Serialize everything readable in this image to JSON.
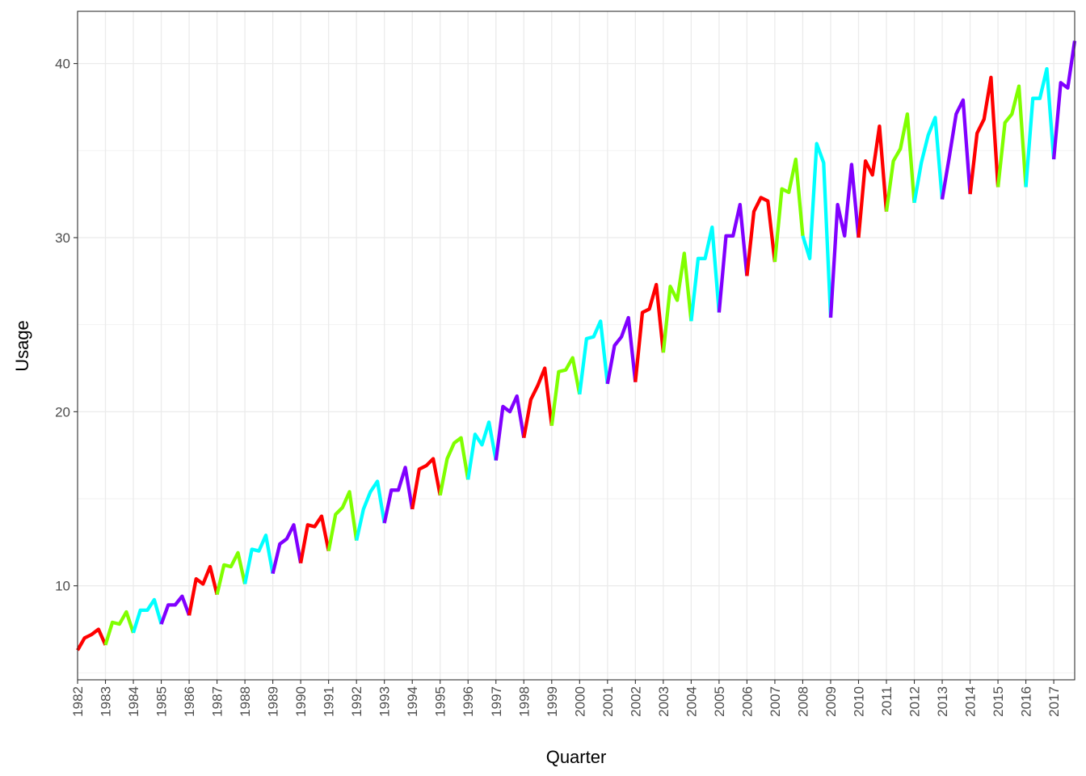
{
  "chart_data": {
    "type": "line",
    "title": "",
    "xlabel": "Quarter",
    "ylabel": "Usage",
    "xlim": [
      1982.0,
      2017.75
    ],
    "ylim": [
      4.6,
      43.0
    ],
    "yticks": [
      10,
      20,
      30,
      40
    ],
    "xticks": [
      "1982",
      "1983",
      "1984",
      "1985",
      "1986",
      "1987",
      "1988",
      "1989",
      "1990",
      "1991",
      "1992",
      "1993",
      "1994",
      "1995",
      "1996",
      "1997",
      "1998",
      "1999",
      "2000",
      "2001",
      "2002",
      "2003",
      "2004",
      "2005",
      "2006",
      "2007",
      "2008",
      "2009",
      "2010",
      "2011",
      "2012",
      "2013",
      "2014",
      "2015",
      "2016",
      "2017"
    ],
    "grid": true,
    "legend": "none",
    "palette": [
      "#ff0000",
      "#80ff00",
      "#00ffff",
      "#8000ff"
    ],
    "x_quarters_start": "1982 Q1",
    "series": [
      {
        "values": [
          6.3,
          7.0,
          7.2,
          7.5,
          6.6,
          7.9,
          7.8,
          8.5,
          7.3,
          8.6,
          8.6,
          9.2,
          7.8,
          8.9,
          8.9,
          9.4
        ]
      },
      {
        "values": [
          8.3,
          10.4,
          10.1,
          11.1,
          9.5,
          11.2,
          11.1,
          11.9,
          10.1,
          12.1,
          12.0,
          12.9,
          10.7,
          12.4,
          12.7,
          13.5
        ]
      },
      {
        "values": [
          11.3,
          13.5,
          13.4,
          14.0,
          12.0,
          14.1,
          14.5,
          15.4,
          12.6,
          14.4,
          15.4,
          16.0,
          13.6,
          15.5,
          15.5,
          16.8
        ]
      },
      {
        "values": [
          14.4,
          16.7,
          16.9,
          17.3,
          15.2,
          17.3,
          18.2,
          18.5,
          16.1,
          18.7,
          18.1,
          19.4,
          17.2,
          20.3,
          20.0,
          20.9
        ]
      },
      {
        "values": [
          18.5,
          20.7,
          21.5,
          22.5,
          19.2,
          22.3,
          22.4,
          23.1,
          21.0,
          24.2,
          24.3,
          25.2,
          21.6,
          23.8,
          24.3,
          25.4
        ]
      },
      {
        "values": [
          21.7,
          25.7,
          25.9,
          27.3,
          23.4,
          27.2,
          26.4,
          29.1,
          25.2,
          28.8,
          28.8,
          30.6,
          25.7,
          30.1,
          30.1,
          31.9
        ]
      },
      {
        "values": [
          27.8,
          31.5,
          32.3,
          32.1,
          28.6,
          32.8,
          32.6,
          34.5,
          30.1,
          28.8,
          35.4,
          34.3,
          25.4,
          31.9,
          30.1,
          34.2
        ]
      },
      {
        "values": [
          30.0,
          34.4,
          33.6,
          36.4,
          31.5,
          34.4,
          35.1,
          37.1,
          32.0,
          34.3,
          35.9,
          36.9,
          32.2,
          34.6,
          37.1,
          37.9
        ]
      },
      {
        "values": [
          32.5,
          36.0,
          36.8,
          39.2,
          32.9,
          36.6,
          37.1,
          38.7,
          32.9,
          38.0,
          38.0,
          39.7,
          34.5,
          38.9,
          38.6,
          41.3
        ]
      }
    ]
  }
}
